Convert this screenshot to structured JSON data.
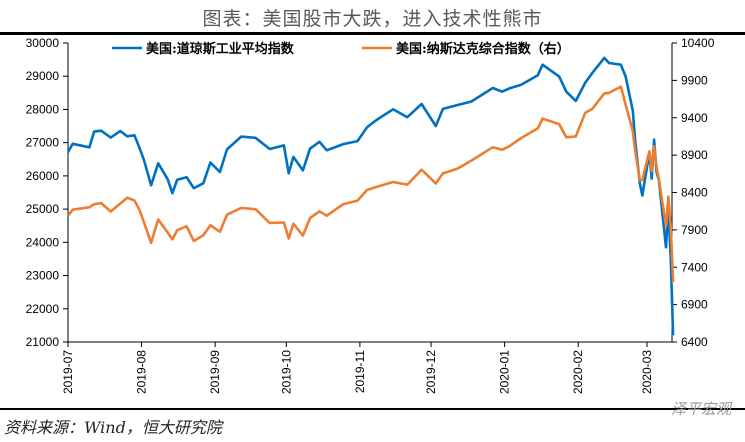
{
  "title": "图表：美国股市大跌，进入技术性熊市",
  "footer": "资料来源：Wind，恒大研究院",
  "watermark": "泽平宏观",
  "chart_data": {
    "type": "line",
    "title": "图表：美国股市大跌，进入技术性熊市",
    "x_ticks": [
      "2019-07",
      "2019-08",
      "2019-09",
      "2019-10",
      "2019-11",
      "2019-12",
      "2020-01",
      "2020-02",
      "2020-03"
    ],
    "y_left": {
      "range": [
        21000,
        30000
      ],
      "ticks": [
        21000,
        22000,
        23000,
        24000,
        25000,
        26000,
        27000,
        28000,
        29000,
        30000
      ]
    },
    "y_right": {
      "range": [
        6400,
        10400
      ],
      "ticks": [
        6400,
        6900,
        7400,
        7900,
        8400,
        8900,
        9400,
        9900,
        10400
      ]
    },
    "legend_placement": "top",
    "grid": false,
    "series": [
      {
        "name": "美国:道琼斯工业平均指数",
        "axis": "left",
        "color": "#0070C0",
        "points": [
          [
            "2019-07-01",
            26717
          ],
          [
            "2019-07-03",
            26966
          ],
          [
            "2019-07-10",
            26860
          ],
          [
            "2019-07-12",
            27332
          ],
          [
            "2019-07-15",
            27359
          ],
          [
            "2019-07-19",
            27154
          ],
          [
            "2019-07-23",
            27349
          ],
          [
            "2019-07-26",
            27192
          ],
          [
            "2019-07-29",
            27221
          ],
          [
            "2019-07-31",
            26864
          ],
          [
            "2019-08-02",
            26485
          ],
          [
            "2019-08-05",
            25718
          ],
          [
            "2019-08-08",
            26378
          ],
          [
            "2019-08-12",
            25897
          ],
          [
            "2019-08-14",
            25479
          ],
          [
            "2019-08-16",
            25886
          ],
          [
            "2019-08-20",
            25962
          ],
          [
            "2019-08-23",
            25628
          ],
          [
            "2019-08-27",
            25778
          ],
          [
            "2019-08-30",
            26403
          ],
          [
            "2019-09-03",
            26118
          ],
          [
            "2019-09-06",
            26797
          ],
          [
            "2019-09-12",
            27182
          ],
          [
            "2019-09-18",
            27147
          ],
          [
            "2019-09-24",
            26808
          ],
          [
            "2019-09-30",
            26917
          ],
          [
            "2019-10-02",
            26078
          ],
          [
            "2019-10-04",
            26573
          ],
          [
            "2019-10-08",
            26164
          ],
          [
            "2019-10-11",
            26817
          ],
          [
            "2019-10-15",
            27025
          ],
          [
            "2019-10-18",
            26770
          ],
          [
            "2019-10-25",
            26958
          ],
          [
            "2019-10-31",
            27046
          ],
          [
            "2019-11-04",
            27462
          ],
          [
            "2019-11-08",
            27681
          ],
          [
            "2019-11-15",
            28005
          ],
          [
            "2019-11-21",
            27766
          ],
          [
            "2019-11-27",
            28164
          ],
          [
            "2019-12-03",
            27503
          ],
          [
            "2019-12-06",
            28015
          ],
          [
            "2019-12-12",
            28132
          ],
          [
            "2019-12-18",
            28239
          ],
          [
            "2019-12-27",
            28645
          ],
          [
            "2019-12-31",
            28538
          ],
          [
            "2020-01-03",
            28634
          ],
          [
            "2020-01-08",
            28745
          ],
          [
            "2020-01-15",
            29030
          ],
          [
            "2020-01-17",
            29348
          ],
          [
            "2020-01-24",
            28989
          ],
          [
            "2020-01-27",
            28535
          ],
          [
            "2020-01-31",
            28256
          ],
          [
            "2020-02-04",
            28807
          ],
          [
            "2020-02-07",
            29102
          ],
          [
            "2020-02-12",
            29551
          ],
          [
            "2020-02-14",
            29398
          ],
          [
            "2020-02-19",
            29348
          ],
          [
            "2020-02-21",
            28992
          ],
          [
            "2020-02-24",
            27961
          ],
          [
            "2020-02-25",
            27081
          ],
          [
            "2020-02-27",
            25766
          ],
          [
            "2020-02-28",
            25409
          ],
          [
            "2020-03-02",
            26703
          ],
          [
            "2020-03-03",
            25917
          ],
          [
            "2020-03-04",
            27091
          ],
          [
            "2020-03-05",
            26122
          ],
          [
            "2020-03-06",
            25865
          ],
          [
            "2020-03-09",
            23851
          ],
          [
            "2020-03-10",
            25018
          ],
          [
            "2020-03-11",
            23553
          ],
          [
            "2020-03-12",
            21201
          ]
        ]
      },
      {
        "name": "美国:纳斯达克综合指数（右）",
        "axis": "right",
        "color": "#ED7D31",
        "points": [
          [
            "2019-07-01",
            8091
          ],
          [
            "2019-07-03",
            8170
          ],
          [
            "2019-07-10",
            8202
          ],
          [
            "2019-07-12",
            8244
          ],
          [
            "2019-07-15",
            8258
          ],
          [
            "2019-07-19",
            8146
          ],
          [
            "2019-07-23",
            8251
          ],
          [
            "2019-07-26",
            8330
          ],
          [
            "2019-07-29",
            8293
          ],
          [
            "2019-07-31",
            8175
          ],
          [
            "2019-08-02",
            8004
          ],
          [
            "2019-08-05",
            7726
          ],
          [
            "2019-08-08",
            8039
          ],
          [
            "2019-08-12",
            7863
          ],
          [
            "2019-08-14",
            7773
          ],
          [
            "2019-08-16",
            7895
          ],
          [
            "2019-08-20",
            7948
          ],
          [
            "2019-08-23",
            7751
          ],
          [
            "2019-08-27",
            7827
          ],
          [
            "2019-08-30",
            7963
          ],
          [
            "2019-09-03",
            7874
          ],
          [
            "2019-09-06",
            8103
          ],
          [
            "2019-09-12",
            8194
          ],
          [
            "2019-09-18",
            8177
          ],
          [
            "2019-09-24",
            7993
          ],
          [
            "2019-09-30",
            7999
          ],
          [
            "2019-10-02",
            7785
          ],
          [
            "2019-10-04",
            7982
          ],
          [
            "2019-10-08",
            7823
          ],
          [
            "2019-10-11",
            8057
          ],
          [
            "2019-10-15",
            8148
          ],
          [
            "2019-10-18",
            8089
          ],
          [
            "2019-10-25",
            8243
          ],
          [
            "2019-10-31",
            8292
          ],
          [
            "2019-11-04",
            8433
          ],
          [
            "2019-11-08",
            8475
          ],
          [
            "2019-11-15",
            8540
          ],
          [
            "2019-11-21",
            8506
          ],
          [
            "2019-11-27",
            8705
          ],
          [
            "2019-12-03",
            8520
          ],
          [
            "2019-12-06",
            8656
          ],
          [
            "2019-12-12",
            8717
          ],
          [
            "2019-12-18",
            8827
          ],
          [
            "2019-12-27",
            9006
          ],
          [
            "2019-12-31",
            8973
          ],
          [
            "2020-01-03",
            9020
          ],
          [
            "2020-01-08",
            9129
          ],
          [
            "2020-01-15",
            9258
          ],
          [
            "2020-01-17",
            9389
          ],
          [
            "2020-01-24",
            9315
          ],
          [
            "2020-01-27",
            9139
          ],
          [
            "2020-01-31",
            9151
          ],
          [
            "2020-02-04",
            9467
          ],
          [
            "2020-02-07",
            9521
          ],
          [
            "2020-02-12",
            9726
          ],
          [
            "2020-02-14",
            9732
          ],
          [
            "2020-02-19",
            9817
          ],
          [
            "2020-02-21",
            9577
          ],
          [
            "2020-02-24",
            9221
          ],
          [
            "2020-02-25",
            8966
          ],
          [
            "2020-02-27",
            8566
          ],
          [
            "2020-02-28",
            8567
          ],
          [
            "2020-03-02",
            8953
          ],
          [
            "2020-03-03",
            8685
          ],
          [
            "2020-03-04",
            9019
          ],
          [
            "2020-03-05",
            8739
          ],
          [
            "2020-03-06",
            8576
          ],
          [
            "2020-03-09",
            7950
          ],
          [
            "2020-03-10",
            8344
          ],
          [
            "2020-03-11",
            7952
          ],
          [
            "2020-03-12",
            7201
          ]
        ]
      }
    ]
  }
}
